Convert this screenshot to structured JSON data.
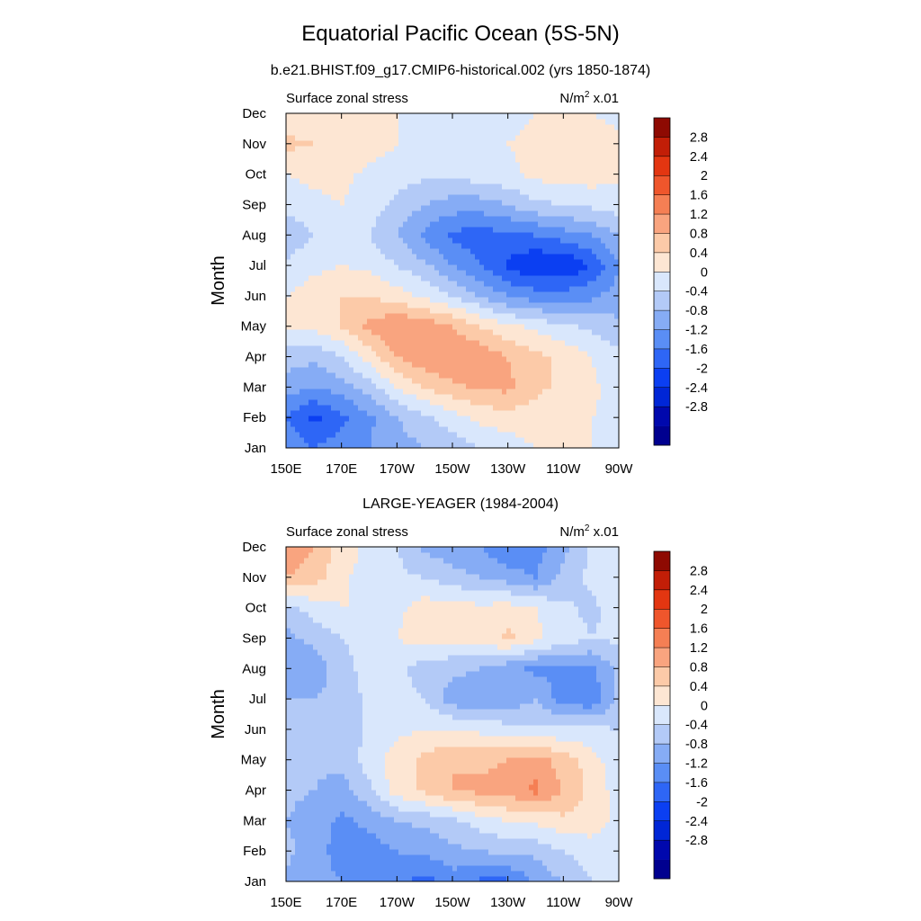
{
  "figure": {
    "title": "Equatorial Pacific Ocean (5S-5N)",
    "colorscale": [
      "#00008f",
      "#0008ad",
      "#0026d6",
      "#0b3ff2",
      "#2e66f6",
      "#5a8ef5",
      "#86acf5",
      "#b3caf7",
      "#d9e7fc",
      "#fde6d3",
      "#fccaa8",
      "#f9a47f",
      "#f57f54",
      "#ef562c",
      "#e33611",
      "#c21e07",
      "#8e0a02"
    ],
    "colorbar_labels": [
      "2.8",
      "2.4",
      "2",
      "1.6",
      "1.2",
      "0.8",
      "0.4",
      "0",
      "-0.4",
      "-0.8",
      "-1.2",
      "-1.6",
      "-2",
      "-2.4",
      "-2.8"
    ]
  },
  "chart_data": [
    {
      "type": "heatmap",
      "title": "b.e21.BHIST.f09_g17.CMIP6-historical.002 (yrs 1850-1874)",
      "left_label": "Surface zonal stress",
      "units": "N/m",
      "units_sup": "2",
      "units_suffix": " x.01",
      "ylabel": "Month",
      "xticks": [
        "150E",
        "170E",
        "170W",
        "150W",
        "130W",
        "110W",
        "90W"
      ],
      "yticks": [
        "Jan",
        "Feb",
        "Mar",
        "Apr",
        "May",
        "Jun",
        "Jul",
        "Aug",
        "Sep",
        "Oct",
        "Nov",
        "Dec"
      ],
      "levels": [
        -2.8,
        -2.4,
        -2,
        -1.6,
        -1.2,
        -0.8,
        -0.4,
        0,
        0.4,
        0.8,
        1.2,
        1.6,
        2,
        2.4,
        2.8
      ],
      "x": [
        150,
        160,
        170,
        180,
        190,
        200,
        210,
        220,
        230,
        240,
        250,
        260,
        270
      ],
      "y": [
        "Jan",
        "Feb",
        "Mar",
        "Apr",
        "May",
        "Jun",
        "Jul",
        "Aug",
        "Sep",
        "Oct",
        "Nov",
        "Dec"
      ],
      "z": [
        [
          -0.8,
          -1.2,
          -1.0,
          -0.8,
          -0.6,
          -0.4,
          -0.2,
          0.0,
          0.2,
          0.4,
          0.4,
          0.4,
          0.2
        ],
        [
          -1.2,
          -1.7,
          -1.3,
          -0.9,
          -0.4,
          -0.1,
          0.2,
          0.5,
          0.6,
          0.6,
          0.5,
          0.4,
          0.3
        ],
        [
          -0.6,
          -0.8,
          -0.6,
          -0.2,
          0.4,
          0.8,
          1.1,
          1.3,
          1.3,
          0.9,
          0.7,
          0.5,
          0.2
        ],
        [
          -0.2,
          -0.3,
          0.0,
          0.6,
          1.2,
          1.5,
          1.6,
          1.5,
          1.2,
          0.9,
          0.7,
          0.4,
          0.1
        ],
        [
          0.4,
          0.5,
          0.8,
          1.3,
          1.6,
          1.5,
          1.2,
          0.8,
          0.5,
          0.3,
          0.1,
          -0.1,
          -0.3
        ],
        [
          0.4,
          0.6,
          0.8,
          0.8,
          0.6,
          0.3,
          0.0,
          -0.4,
          -0.8,
          -1.0,
          -1.0,
          -0.9,
          -0.6
        ],
        [
          0.1,
          0.3,
          0.4,
          0.3,
          0.0,
          -0.3,
          -0.8,
          -1.2,
          -1.7,
          -2.0,
          -2.0,
          -1.6,
          -0.8
        ],
        [
          -0.3,
          0.0,
          0.2,
          0.0,
          -0.4,
          -0.9,
          -1.3,
          -1.4,
          -1.3,
          -1.2,
          -1.0,
          -0.8,
          -0.4
        ],
        [
          0.1,
          0.3,
          0.4,
          0.2,
          -0.1,
          -0.4,
          -0.6,
          -0.6,
          -0.4,
          -0.1,
          0.0,
          0.1,
          0.2
        ],
        [
          0.4,
          0.5,
          0.5,
          0.3,
          0.2,
          0.1,
          0.1,
          0.2,
          0.3,
          0.5,
          0.6,
          0.6,
          0.5
        ],
        [
          0.9,
          0.8,
          0.8,
          0.6,
          0.4,
          0.3,
          0.3,
          0.3,
          0.4,
          0.5,
          0.6,
          0.6,
          0.5
        ],
        [
          0.6,
          0.5,
          0.5,
          0.4,
          0.4,
          0.3,
          0.3,
          0.3,
          0.3,
          0.4,
          0.4,
          0.4,
          0.3
        ]
      ]
    },
    {
      "type": "heatmap",
      "title": "LARGE-YEAGER (1984-2004)",
      "left_label": "Surface zonal stress",
      "units": "N/m",
      "units_sup": "2",
      "units_suffix": " x.01",
      "ylabel": "Month",
      "xticks": [
        "150E",
        "170E",
        "170W",
        "150W",
        "130W",
        "110W",
        "90W"
      ],
      "yticks": [
        "Jan",
        "Feb",
        "Mar",
        "Apr",
        "May",
        "Jun",
        "Jul",
        "Aug",
        "Sep",
        "Oct",
        "Nov",
        "Dec"
      ],
      "levels": [
        -2.8,
        -2.4,
        -2,
        -1.6,
        -1.2,
        -0.8,
        -0.4,
        0,
        0.4,
        0.8,
        1.2,
        1.6,
        2,
        2.4,
        2.8
      ],
      "x": [
        150,
        160,
        170,
        180,
        190,
        200,
        210,
        220,
        230,
        240,
        250,
        260,
        270
      ],
      "y": [
        "Jan",
        "Feb",
        "Mar",
        "Apr",
        "May",
        "Jun",
        "Jul",
        "Aug",
        "Sep",
        "Oct",
        "Nov",
        "Dec"
      ],
      "z": [
        [
          -0.5,
          -0.6,
          -0.8,
          -0.9,
          -1.0,
          -1.4,
          -1.0,
          -1.3,
          -1.3,
          -0.7,
          -0.4,
          0.0,
          0.1
        ],
        [
          -0.3,
          -0.6,
          -1.0,
          -1.0,
          -0.8,
          -0.7,
          -0.5,
          -0.4,
          -0.3,
          -0.3,
          0.0,
          0.2,
          0.3
        ],
        [
          -0.4,
          -0.6,
          -0.9,
          -0.7,
          -0.4,
          -0.3,
          -0.1,
          0.2,
          0.4,
          0.5,
          0.7,
          0.6,
          0.3
        ],
        [
          -0.3,
          -0.4,
          -0.6,
          -0.1,
          0.6,
          0.9,
          1.2,
          1.3,
          1.4,
          1.7,
          1.2,
          0.7,
          0.2
        ],
        [
          -0.2,
          -0.3,
          -0.3,
          0.2,
          0.6,
          0.9,
          1.2,
          1.1,
          1.2,
          1.4,
          1.0,
          0.6,
          0.1
        ],
        [
          -0.2,
          -0.3,
          -0.4,
          0.1,
          0.3,
          0.4,
          0.4,
          0.3,
          0.2,
          0.1,
          0.1,
          0.1,
          0.0
        ],
        [
          -0.4,
          -0.4,
          -0.3,
          0.1,
          0.2,
          0.0,
          -0.6,
          -0.8,
          -0.7,
          -0.4,
          -1.0,
          -1.1,
          -0.3
        ],
        [
          -0.8,
          -0.6,
          -0.2,
          0.2,
          0.1,
          -0.2,
          -0.3,
          -0.4,
          -0.7,
          -0.9,
          -0.9,
          -0.9,
          -0.3
        ],
        [
          -0.5,
          -0.3,
          0.0,
          0.2,
          0.4,
          0.6,
          0.5,
          0.6,
          0.9,
          0.5,
          0.2,
          0.0,
          0.1
        ],
        [
          -0.2,
          0.2,
          0.4,
          0.4,
          0.3,
          0.6,
          0.6,
          0.5,
          0.6,
          0.4,
          0.1,
          -0.1,
          0.2
        ],
        [
          1.2,
          1.0,
          0.5,
          0.2,
          0.1,
          0.0,
          -0.2,
          -0.4,
          -0.6,
          -0.8,
          -0.3,
          0.1,
          0.4
        ],
        [
          1.5,
          1.2,
          0.6,
          0.3,
          0.0,
          -0.5,
          -0.7,
          -0.8,
          -1.2,
          -1.0,
          -0.5,
          0.1,
          0.3
        ]
      ]
    }
  ]
}
